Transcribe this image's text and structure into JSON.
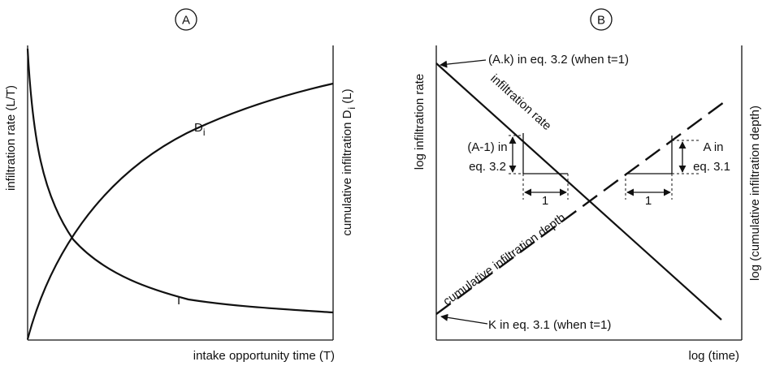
{
  "panel_a": {
    "badge": "A",
    "y_label_left": "infiltration rate (L/T)",
    "y_label_right_main": "cumulative infiltration D",
    "y_label_right_sub": "i",
    "y_label_right_unit": " (L)",
    "x_label": "intake opportunity time (T)",
    "curve_d_label_main": "D",
    "curve_d_label_sub": "i",
    "curve_i_label": "I"
  },
  "panel_b": {
    "badge": "B",
    "y_label_left": "log infiltration rate",
    "y_label_right": "log (cumulative infiltration depth)",
    "x_label": "log (time)",
    "line_infiltration_rate_label": "infiltration rate",
    "line_cumulative_label": "cumulative infiltration depth",
    "annotation_top": "(A.k) in eq. 3.2 (when t=1)",
    "annotation_bottom": "K in eq. 3.1 (when t=1)",
    "left_triangle_line1": "(A-1) in",
    "left_triangle_line2": "eq. 3.2",
    "left_triangle_run": "1",
    "right_triangle_line1": "A in",
    "right_triangle_line2": "eq. 3.1",
    "right_triangle_run": "1"
  }
}
